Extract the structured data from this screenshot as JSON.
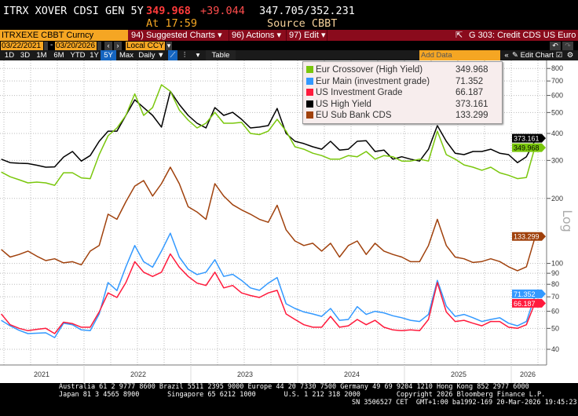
{
  "header": {
    "security": "ITRX XOVER CDSI GEN 5Y",
    "last": "349.968",
    "change": "+39.044",
    "bid_ask": "347.705/352.231",
    "time": "At 17:59",
    "source": "Source CBBT"
  },
  "toolbar": {
    "ticker": "ITRXEXE CBBT Curncy",
    "suggested": "94) Suggested Charts ▾",
    "actions": "96) Actions ▾",
    "edit": "97) Edit ▾",
    "chart_name": "G 303: Credit CDS US Euro",
    "popout_icon": "external-link-icon"
  },
  "dates": {
    "start": "03/22/2021",
    "end": "03/20/2026",
    "currency": "Local CCY",
    "dash": "-"
  },
  "periods": [
    {
      "label": "1D"
    },
    {
      "label": "3D"
    },
    {
      "label": "1M"
    },
    {
      "label": "6M"
    },
    {
      "label": "YTD"
    },
    {
      "label": "1Y"
    },
    {
      "label": "5Y",
      "selected": true
    },
    {
      "label": "Max"
    }
  ],
  "frequency": "Daily ▼",
  "table_label": "Table",
  "add_data_placeholder": "Add Data",
  "edit_chart_label": "✎ Edit Chart",
  "colors": {
    "xover": "#7ac70c",
    "main": "#3399ff",
    "usig": "#ff1a3c",
    "ushy": "#000000",
    "subbank": "#a0410c",
    "accent": "#f5a623",
    "brand_bar": "#8a0b1c"
  },
  "chart_data": {
    "type": "line",
    "scale": "log",
    "ylabel": "Log",
    "ylim": [
      36,
      900
    ],
    "yticks": [
      40,
      50,
      60,
      70,
      80,
      90,
      100,
      200,
      300,
      400,
      500,
      600,
      700,
      800
    ],
    "xticks": [
      "2021",
      "2022",
      "2023",
      "2024",
      "2025",
      "2026"
    ],
    "grid": true,
    "legend_position": "top-center",
    "x": [
      "2021-03",
      "2021-04",
      "2021-05",
      "2021-06",
      "2021-07",
      "2021-08",
      "2021-09",
      "2021-10",
      "2021-11",
      "2021-12",
      "2022-01",
      "2022-02",
      "2022-03",
      "2022-04",
      "2022-05",
      "2022-06",
      "2022-07",
      "2022-08",
      "2022-09",
      "2022-10",
      "2022-11",
      "2022-12",
      "2023-01",
      "2023-02",
      "2023-03",
      "2023-04",
      "2023-05",
      "2023-06",
      "2023-07",
      "2023-08",
      "2023-09",
      "2023-10",
      "2023-11",
      "2023-12",
      "2024-01",
      "2024-02",
      "2024-03",
      "2024-04",
      "2024-05",
      "2024-06",
      "2024-07",
      "2024-08",
      "2024-09",
      "2024-10",
      "2024-11",
      "2024-12",
      "2025-01",
      "2025-02",
      "2025-03",
      "2025-04",
      "2025-05",
      "2025-06",
      "2025-07",
      "2025-08",
      "2025-09",
      "2025-10",
      "2025-11",
      "2025-12",
      "2026-01",
      "2026-02",
      "2026-03"
    ],
    "series": [
      {
        "name": "Eur Crossover (High Yield)",
        "last": "349.968",
        "color": "#7ac70c",
        "values": [
          265,
          252,
          244,
          236,
          238,
          236,
          230,
          263,
          263,
          249,
          247,
          319,
          390,
          424,
          485,
          610,
          485,
          527,
          672,
          627,
          514,
          461,
          424,
          446,
          501,
          446,
          446,
          450,
          400,
          395,
          410,
          465,
          410,
          347,
          338,
          324,
          316,
          304,
          304,
          316,
          312,
          330,
          304,
          316,
          312,
          298,
          298,
          304,
          298,
          410,
          319,
          304,
          286,
          279,
          270,
          279,
          263,
          256,
          247,
          250,
          349.968
        ]
      },
      {
        "name": "Eur Main (investment grade)",
        "last": "71.352",
        "color": "#3399ff",
        "values": [
          54.5,
          51.4,
          49,
          47.3,
          47.5,
          47.7,
          45.3,
          52.8,
          52,
          49.2,
          48.8,
          58.3,
          81.5,
          74.8,
          96.4,
          121,
          101.8,
          96,
          114,
          138,
          107,
          94,
          88.8,
          91,
          104,
          87,
          89,
          83.4,
          77,
          75,
          81,
          86,
          65,
          61.8,
          59.6,
          58.3,
          56.8,
          61.8,
          54.5,
          55,
          63,
          58,
          60,
          59,
          57.2,
          56,
          54.5,
          53.8,
          58,
          83.4,
          63.4,
          56.8,
          58,
          56,
          53.8,
          55,
          56,
          52.8,
          51.4,
          53.8,
          71.352
        ]
      },
      {
        "name": "US Investment Grade",
        "last": "66.187",
        "color": "#ff1a3c",
        "values": [
          58.3,
          52,
          50,
          48.8,
          49.5,
          50,
          47.3,
          53.4,
          52.6,
          50.6,
          50.6,
          59.6,
          73,
          69.5,
          81.5,
          101.8,
          91,
          87,
          91,
          110.6,
          96,
          87,
          81,
          79,
          91,
          77,
          79,
          73,
          71,
          69.5,
          73,
          75,
          58.3,
          55,
          52,
          50.6,
          50.6,
          56.8,
          50.6,
          51.4,
          55,
          52,
          54.5,
          50.6,
          49.2,
          48.8,
          49.2,
          48.8,
          55,
          81.5,
          59.6,
          53.8,
          54.5,
          52.8,
          51.4,
          53.8,
          53.8,
          50.6,
          50,
          52,
          66.187
        ]
      },
      {
        "name": "US High Yield",
        "last": "373.161",
        "color": "#000000",
        "values": [
          304,
          293,
          291,
          290,
          285,
          279,
          280,
          311,
          330,
          298,
          316,
          368,
          410,
          410,
          485,
          573,
          527,
          485,
          428,
          627,
          545,
          485,
          446,
          424,
          527,
          485,
          501,
          465,
          424,
          428,
          435,
          522,
          400,
          368,
          359,
          347,
          338,
          368,
          335,
          338,
          368,
          370,
          330,
          335,
          304,
          312,
          304,
          298,
          338,
          435,
          368,
          324,
          319,
          330,
          330,
          338,
          324,
          319,
          293,
          312,
          373.161
        ]
      },
      {
        "name": "EU Sub Bank CDS",
        "last": "133.299",
        "color": "#a0410c",
        "values": [
          116,
          107,
          110,
          114,
          108,
          103,
          105,
          100.6,
          101.8,
          98.5,
          114,
          121,
          169,
          160,
          193,
          228,
          242,
          205,
          234,
          279,
          234,
          183,
          173,
          160,
          234,
          205,
          187,
          177,
          169,
          160,
          155,
          186,
          143,
          127,
          121,
          124,
          114,
          124,
          107,
          121,
          127,
          110,
          124,
          114,
          110,
          107,
          101.8,
          101.8,
          121,
          160,
          121,
          107,
          105,
          101,
          102,
          105,
          102,
          96.4,
          92.5,
          96.4,
          133.299
        ]
      }
    ]
  },
  "footer": {
    "line1": "Australia 61 2 9777 8600 Brazil 5511 2395 9000 Europe 44 20 7330 7500 Germany 49 69 9204 1210 Hong Kong 852 2977 6000",
    "line2": "Japan 81 3 4565 8900       Singapore 65 6212 1000       U.S. 1 212 318 2000         Copyright 2026 Bloomberg Finance L.P.",
    "line3": "SN 3506527 CET  GMT+1:00 ba1992-169 20-Mar-2026 19:45:23"
  }
}
